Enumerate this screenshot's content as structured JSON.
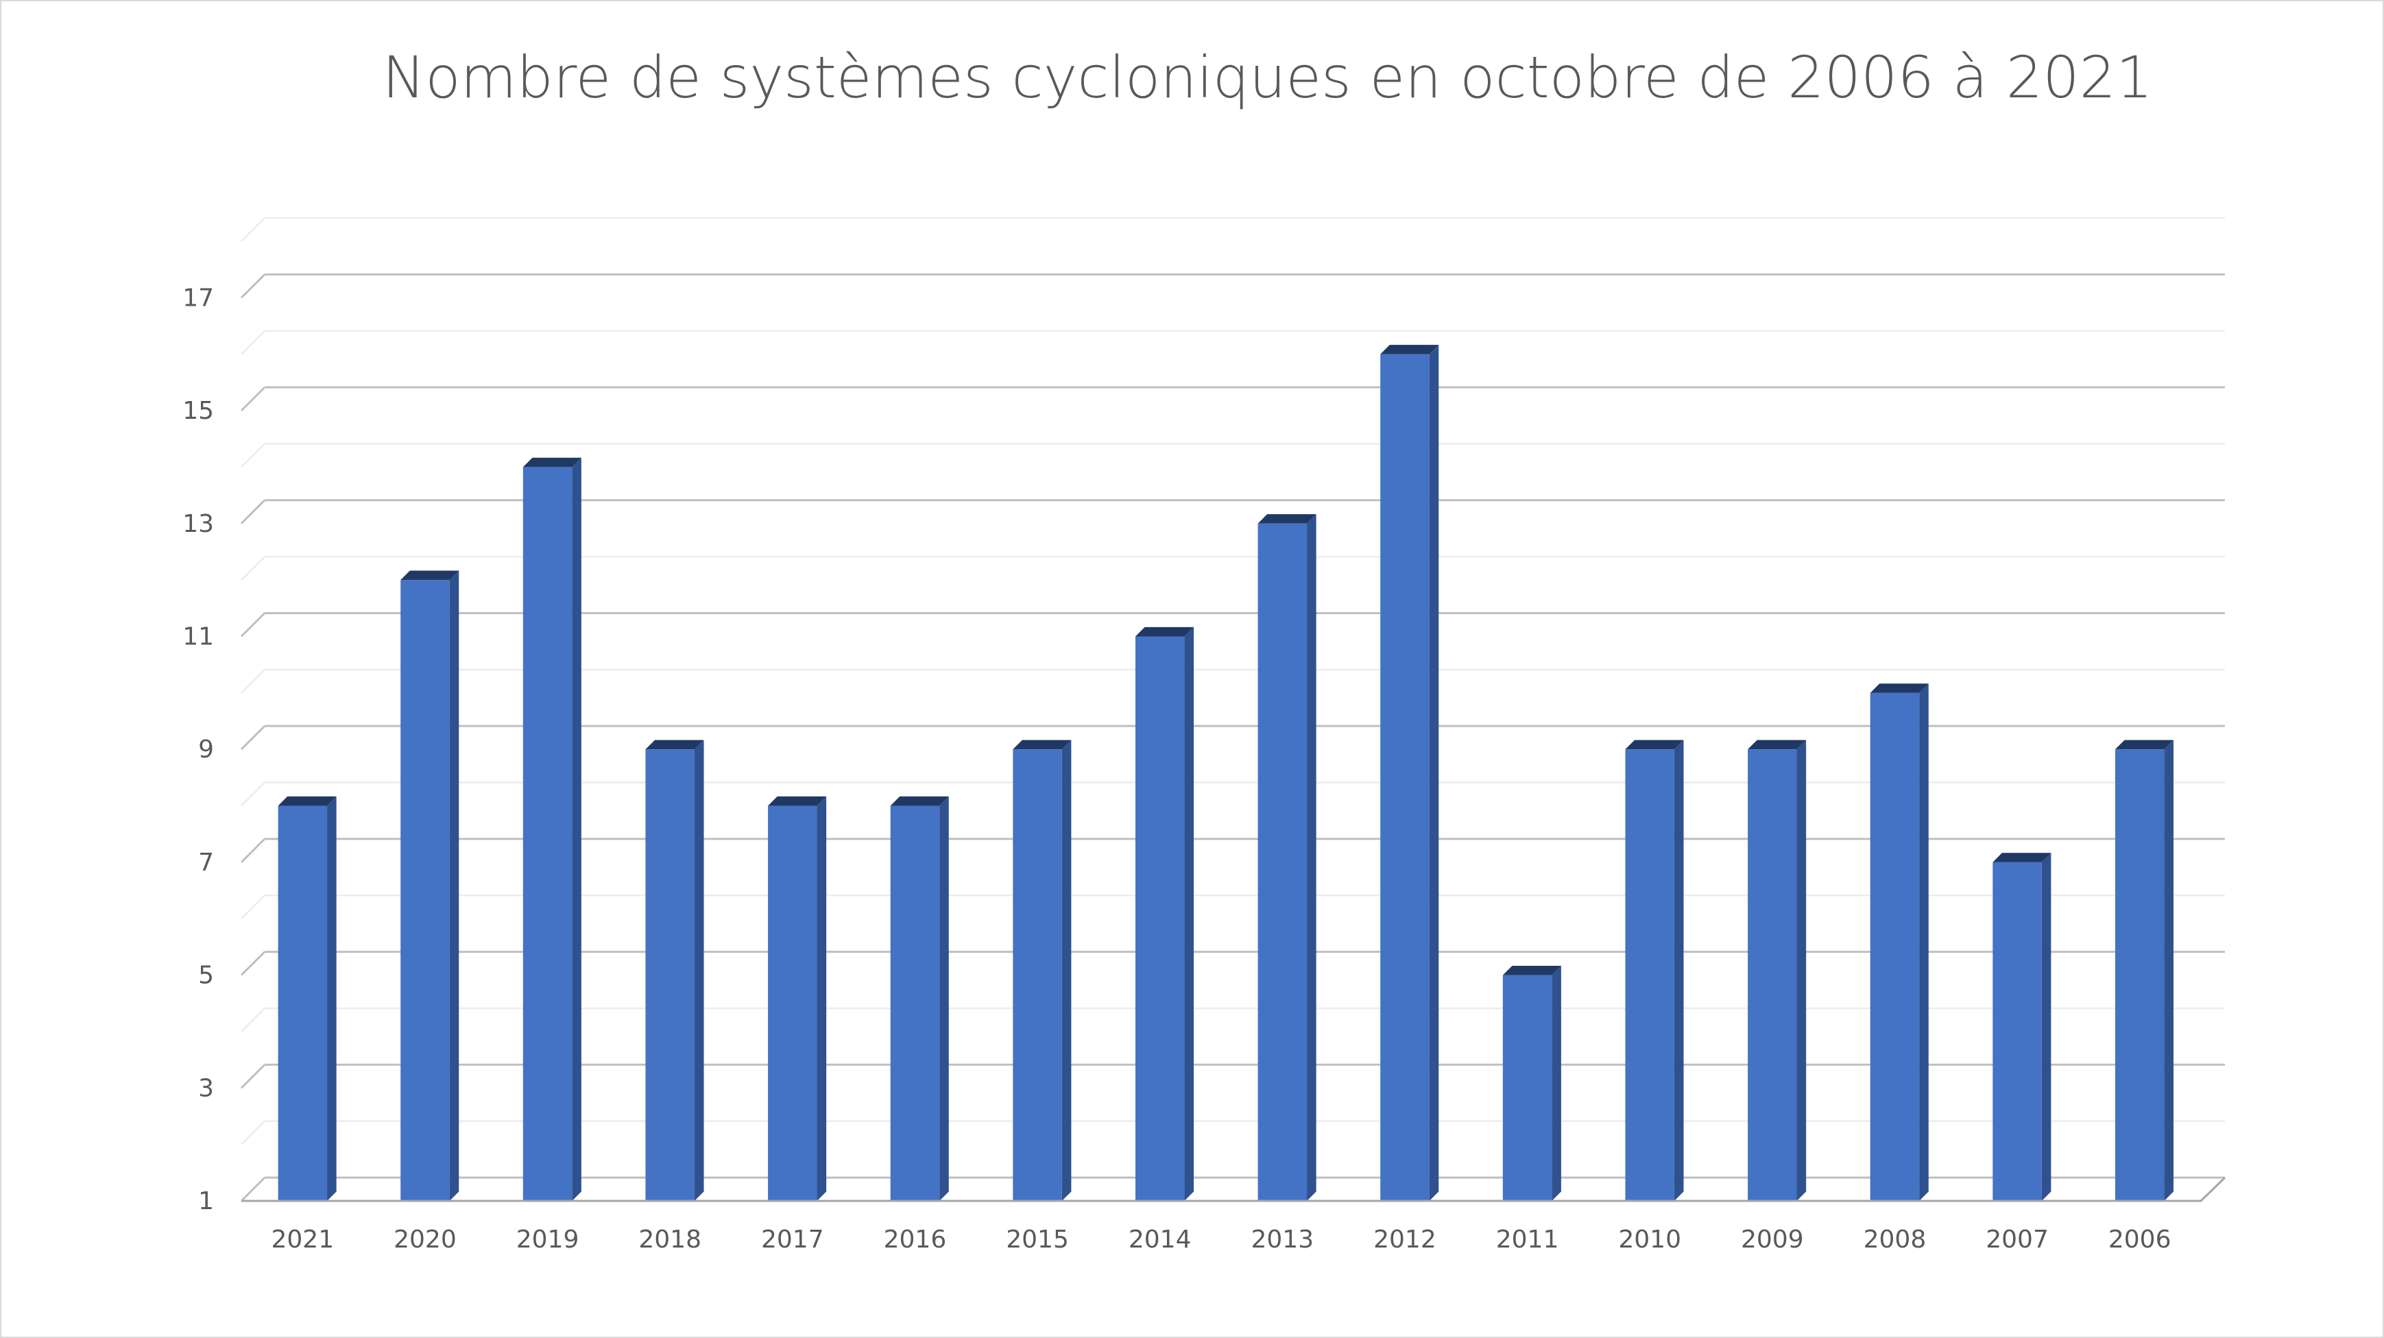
{
  "chart_data": {
    "type": "bar",
    "title": "Nombre de systèmes cycloniques en octobre de 2006 à 2021",
    "xlabel": "",
    "ylabel": "",
    "categories": [
      "2021",
      "2020",
      "2019",
      "2018",
      "2017",
      "2016",
      "2015",
      "2014",
      "2013",
      "2012",
      "2011",
      "2010",
      "2009",
      "2008",
      "2007",
      "2006"
    ],
    "values": [
      8,
      12,
      14,
      9,
      8,
      8,
      9,
      11,
      13,
      16,
      5,
      9,
      9,
      10,
      7,
      9
    ],
    "ylim": [
      1,
      18
    ],
    "yticks": [
      "1",
      "3",
      "5",
      "7",
      "9",
      "11",
      "13",
      "15",
      "17"
    ],
    "grid": true,
    "style": "3d-column",
    "colors": {
      "bar_front": "#4472c4",
      "bar_side": "#2f528f",
      "bar_top": "#203864",
      "grid_major": "#bfbfbf",
      "grid_minor": "#ececec",
      "text": "#595959"
    }
  }
}
